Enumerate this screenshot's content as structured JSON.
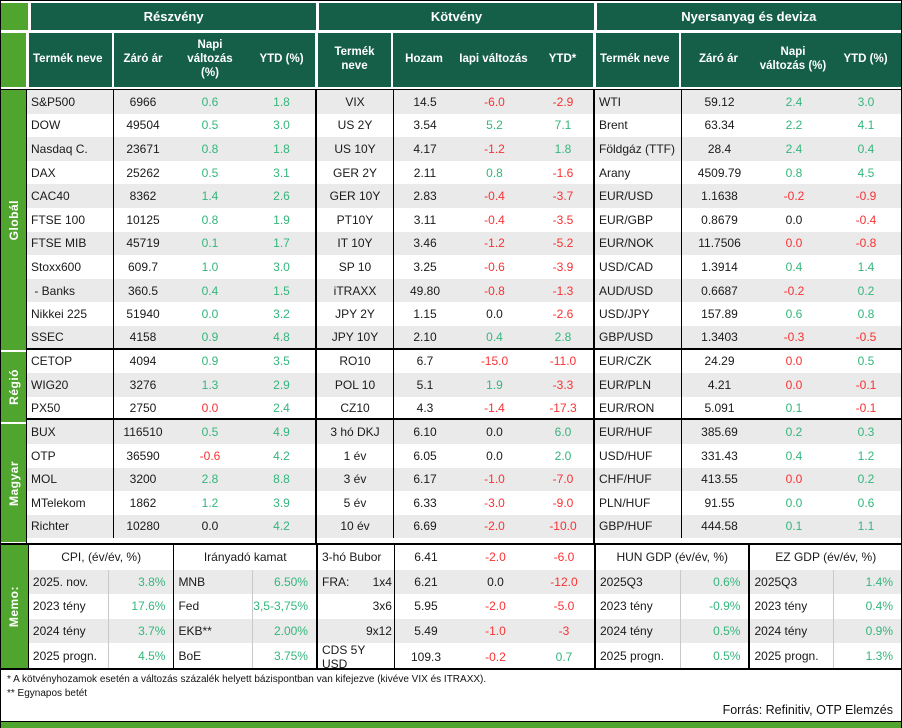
{
  "header": {
    "sections": [
      {
        "title": "Részvény",
        "cols": [
          "Termék neve",
          "Záró ár",
          "Napi\nváltozás\n(%)",
          "YTD (%)"
        ]
      },
      {
        "title": "Kötvény",
        "cols": [
          "Termék\nneve",
          "Hozam",
          "Iapi változás",
          "YTD*"
        ]
      },
      {
        "title": "Nyersanyag és deviza",
        "cols": [
          "Termék neve",
          "Záró ár",
          "Napi\nváltozás (%)",
          "YTD (%)"
        ]
      }
    ]
  },
  "sidebar": {
    "groups": [
      "Globál",
      "Régió",
      "Magyar",
      "Memo:"
    ]
  },
  "layout_breaks": [
    11,
    14
  ],
  "tables": {
    "equity": {
      "rows": [
        [
          "S&P500",
          "6966",
          "0.6",
          "g",
          "1.8",
          "g"
        ],
        [
          "DOW",
          "49504",
          "0.5",
          "g",
          "3.0",
          "g"
        ],
        [
          "Nasdaq C.",
          "23671",
          "0.8",
          "g",
          "1.8",
          "g"
        ],
        [
          "DAX",
          "25262",
          "0.5",
          "g",
          "3.1",
          "g"
        ],
        [
          "CAC40",
          "8362",
          "1.4",
          "g",
          "2.6",
          "g"
        ],
        [
          "FTSE 100",
          "10125",
          "0.8",
          "g",
          "1.9",
          "g"
        ],
        [
          "FTSE MIB",
          "45719",
          "0.1",
          "g",
          "1.7",
          "g"
        ],
        [
          "Stoxx600",
          "609.7",
          "1.0",
          "g",
          "3.0",
          "g"
        ],
        [
          " - Banks",
          "360.5",
          "0.4",
          "g",
          "1.5",
          "g"
        ],
        [
          "Nikkei 225",
          "51940",
          "0.0",
          "g",
          "3.2",
          "g"
        ],
        [
          "SSEC",
          "4158",
          "0.9",
          "g",
          "4.8",
          "g"
        ],
        [
          "CETOP",
          "4094",
          "0.9",
          "g",
          "3.5",
          "g"
        ],
        [
          "WIG20",
          "3276",
          "1.3",
          "g",
          "2.9",
          "g"
        ],
        [
          "PX50",
          "2750",
          "0.0",
          "r",
          "2.4",
          "g"
        ],
        [
          "BUX",
          "116510",
          "0.5",
          "g",
          "4.9",
          "g"
        ],
        [
          "OTP",
          "36590",
          "-0.6",
          "r",
          "4.2",
          "g"
        ],
        [
          "MOL",
          "3200",
          "2.8",
          "g",
          "8.8",
          "g"
        ],
        [
          "MTelekom",
          "1862",
          "1.2",
          "g",
          "3.9",
          "g"
        ],
        [
          "Richter",
          "10280",
          "0.0",
          "k",
          "4.2",
          "g"
        ]
      ]
    },
    "bond": {
      "rows": [
        [
          "VIX",
          "14.5",
          "-6.0",
          "r",
          "-2.9",
          "r"
        ],
        [
          "US 2Y",
          "3.54",
          "5.2",
          "g",
          "7.1",
          "g"
        ],
        [
          "US 10Y",
          "4.17",
          "-1.2",
          "r",
          "1.8",
          "g"
        ],
        [
          "GER 2Y",
          "2.11",
          "0.8",
          "g",
          "-1.6",
          "r"
        ],
        [
          "GER 10Y",
          "2.83",
          "-0.4",
          "r",
          "-3.7",
          "r"
        ],
        [
          "PT10Y",
          "3.11",
          "-0.4",
          "r",
          "-3.5",
          "r"
        ],
        [
          "IT 10Y",
          "3.46",
          "-1.2",
          "r",
          "-5.2",
          "r"
        ],
        [
          "SP 10",
          "3.25",
          "-0.6",
          "r",
          "-3.9",
          "r"
        ],
        [
          "iTRAXX",
          "49.80",
          "-0.8",
          "r",
          "-1.3",
          "r"
        ],
        [
          "JPY 2Y",
          "1.15",
          "0.0",
          "k",
          "-2.6",
          "r"
        ],
        [
          "JPY 10Y",
          "2.10",
          "0.4",
          "g",
          "2.8",
          "g"
        ],
        [
          "RO10",
          "6.7",
          "-15.0",
          "r",
          "-11.0",
          "r"
        ],
        [
          "POL 10",
          "5.1",
          "1.9",
          "g",
          "-3.3",
          "r"
        ],
        [
          "CZ10",
          "4.3",
          "-1.4",
          "r",
          "-17.3",
          "r"
        ],
        [
          "3 hó DKJ",
          "6.10",
          "0.0",
          "k",
          "6.0",
          "g"
        ],
        [
          "1 év",
          "6.05",
          "0.0",
          "k",
          "2.0",
          "g"
        ],
        [
          "3 év",
          "6.17",
          "-1.0",
          "r",
          "-7.0",
          "r"
        ],
        [
          "5 év",
          "6.33",
          "-3.0",
          "r",
          "-9.0",
          "r"
        ],
        [
          "10 év",
          "6.69",
          "-2.0",
          "r",
          "-10.0",
          "r"
        ]
      ]
    },
    "commodity": {
      "rows": [
        [
          "WTI",
          "59.12",
          "2.4",
          "g",
          "3.0",
          "g"
        ],
        [
          "Brent",
          "63.34",
          "2.2",
          "g",
          "4.1",
          "g"
        ],
        [
          "Földgáz (TTF)",
          "28.4",
          "2.4",
          "g",
          "0.4",
          "g"
        ],
        [
          "Arany",
          "4509.79",
          "0.8",
          "g",
          "4.5",
          "g"
        ],
        [
          "EUR/USD",
          "1.1638",
          "-0.2",
          "r",
          "-0.9",
          "r"
        ],
        [
          "EUR/GBP",
          "0.8679",
          "0.0",
          "k",
          "-0.4",
          "r"
        ],
        [
          "EUR/NOK",
          "11.7506",
          "0.0",
          "r",
          "-0.8",
          "r"
        ],
        [
          "USD/CAD",
          "1.3914",
          "0.4",
          "g",
          "1.4",
          "g"
        ],
        [
          "AUD/USD",
          "0.6687",
          "-0.2",
          "r",
          "0.2",
          "g"
        ],
        [
          "USD/JPY",
          "157.89",
          "0.6",
          "g",
          "0.8",
          "g"
        ],
        [
          "GBP/USD",
          "1.3403",
          "-0.3",
          "r",
          "-0.5",
          "r"
        ],
        [
          "EUR/CZK",
          "24.29",
          "0.0",
          "r",
          "0.5",
          "g"
        ],
        [
          "EUR/PLN",
          "4.21",
          "0.0",
          "r",
          "-0.1",
          "r"
        ],
        [
          "EUR/RON",
          "5.091",
          "0.1",
          "g",
          "-0.1",
          "r"
        ],
        [
          "EUR/HUF",
          "385.69",
          "0.2",
          "g",
          "0.3",
          "g"
        ],
        [
          "USD/HUF",
          "331.43",
          "0.4",
          "g",
          "1.2",
          "g"
        ],
        [
          "CHF/HUF",
          "413.55",
          "0.0",
          "r",
          "0.2",
          "g"
        ],
        [
          "PLN/HUF",
          "91.55",
          "0.0",
          "g",
          "0.6",
          "g"
        ],
        [
          "GBP/HUF",
          "444.58",
          "0.1",
          "g",
          "1.1",
          "g"
        ]
      ]
    }
  },
  "memo": {
    "cpi": {
      "title": "CPI, (év/év, %)",
      "rows": [
        [
          "2025. nov.",
          "3.8%"
        ],
        [
          "2023 tény",
          "17.6%"
        ],
        [
          "2024 tény",
          "3.7%"
        ],
        [
          "2025 progn.",
          "4.5%"
        ]
      ]
    },
    "kamat": {
      "title": "Irányadó kamat",
      "rows": [
        [
          "MNB",
          "6.50%"
        ],
        [
          "Fed",
          "3,5-3,75%"
        ],
        [
          "EKB**",
          "2.00%"
        ],
        [
          "BoE",
          "3.75%"
        ]
      ]
    },
    "bubor": {
      "rows": [
        [
          "3-hó Bubor",
          "",
          "6.41",
          "-2.0",
          "r",
          "-6.0",
          "r"
        ],
        [
          "FRA:",
          "1x4",
          "6.21",
          "0.0",
          "k",
          "-12.0",
          "r"
        ],
        [
          "",
          "3x6",
          "5.95",
          "-2.0",
          "r",
          "-5.0",
          "r"
        ],
        [
          "",
          "9x12",
          "5.49",
          "-1.0",
          "r",
          "-3",
          "r"
        ],
        [
          "CDS 5Y USD",
          "",
          "109.3",
          "-0.2",
          "r",
          "0.7",
          "g"
        ]
      ]
    },
    "hun_gdp": {
      "title": "HUN GDP (év/év, %)",
      "rows": [
        [
          "2025Q3",
          "0.6%"
        ],
        [
          "2023 tény",
          "-0.9%"
        ],
        [
          "2024 tény",
          "0.5%"
        ],
        [
          "2025 progn.",
          "0.5%"
        ]
      ]
    },
    "ez_gdp": {
      "title": "EZ GDP (év/év, %)",
      "rows": [
        [
          "2025Q3",
          "1.4%"
        ],
        [
          "2023 tény",
          "0.4%"
        ],
        [
          "2024 tény",
          "0.9%"
        ],
        [
          "2025 progn.",
          "1.3%"
        ]
      ]
    }
  },
  "footnotes": [
    "* A kötvényhozamok esetén a változás százalék helyett bázispontban van kifejezve (kivéve VIX és ITRAXX).",
    "** Egynapos betét"
  ],
  "source": "Forrás: Refinitiv, OTP Elemzés",
  "colors": {
    "header_green": "#155E48",
    "accent_green": "#4FA52E",
    "positive": "#35B57C",
    "negative": "#F93232",
    "stripe": "#EAEAEA"
  }
}
